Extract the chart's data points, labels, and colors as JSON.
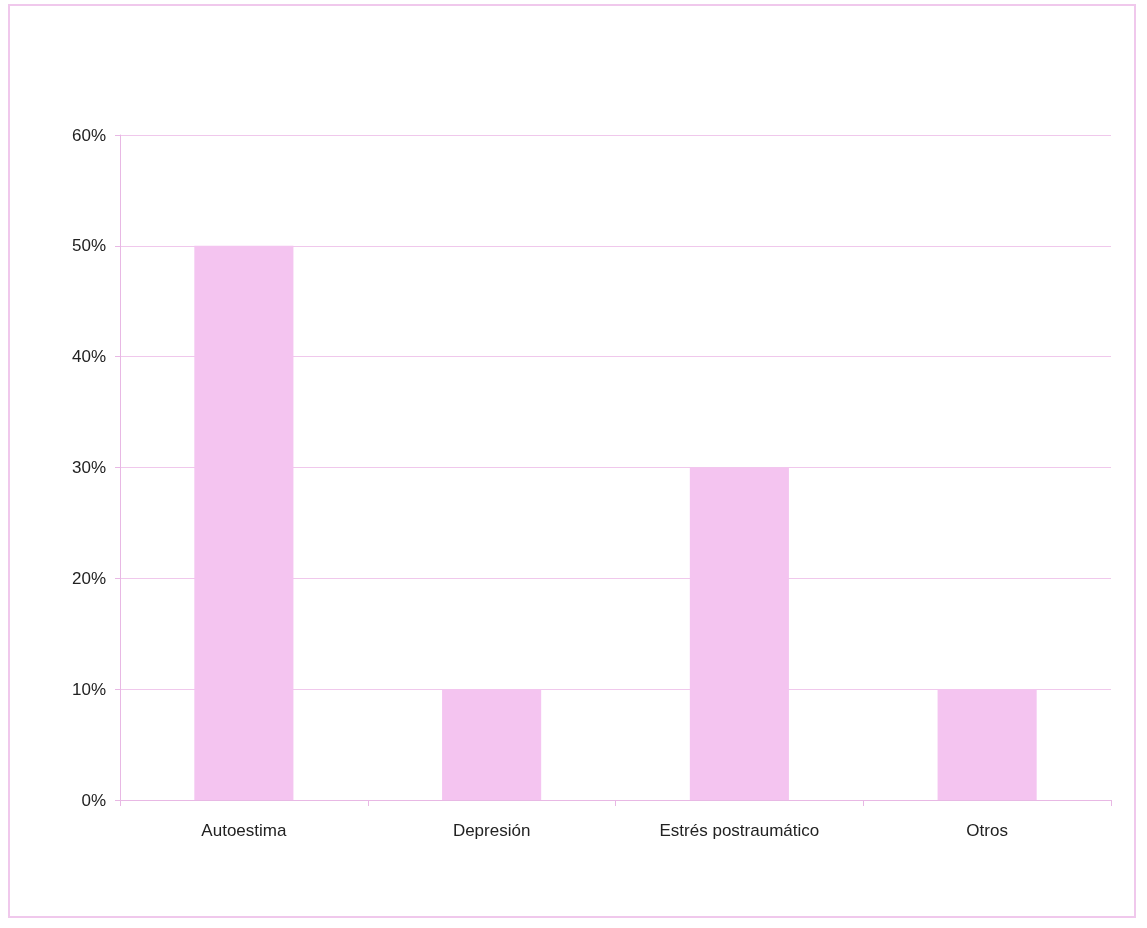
{
  "chart_data": {
    "type": "bar",
    "categories": [
      "Autoestima",
      "Depresión",
      "Estrés postraumático",
      "Otros"
    ],
    "values": [
      50,
      10,
      30,
      10
    ],
    "color": "#f4c4f0",
    "ylim": [
      0,
      60
    ],
    "yticks": [
      {
        "value": 0,
        "label": "0%"
      },
      {
        "value": 10,
        "label": "10%"
      },
      {
        "value": 20,
        "label": "20%"
      },
      {
        "value": 30,
        "label": "30%"
      },
      {
        "value": 40,
        "label": "40%"
      },
      {
        "value": 50,
        "label": "50%"
      },
      {
        "value": 60,
        "label": "60%"
      }
    ],
    "grid": "y"
  }
}
